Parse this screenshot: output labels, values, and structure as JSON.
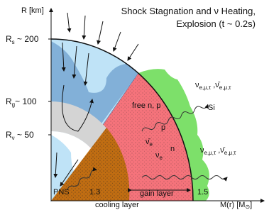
{
  "title": {
    "line1": "Shock Stagnation and ν Heating,",
    "line2": "Explosion  (t ~ 0.2s)"
  },
  "axes": {
    "y_label": "R [km]",
    "x_label": "M(r) [M",
    "x_label_sub": "⊙",
    "x_label_end": "]"
  },
  "radius_labels": [
    {
      "symbol": "R",
      "sub": "s",
      "value": " ~ 200"
    },
    {
      "symbol": "R",
      "sub": "g",
      "value": "~ 100"
    },
    {
      "symbol": "R",
      "sub": "ν",
      "value": " ~ 50"
    }
  ],
  "mass_labels": {
    "pns": "PNS",
    "m1": "1.3",
    "gain": "gain layer",
    "m2": "1.5",
    "cooling": "cooling layer"
  },
  "region_labels": {
    "free": "free n, p",
    "p": "p",
    "n": "n",
    "si": "Si",
    "nu": "ν",
    "nu_sub": "e",
    "nubar": "ν̄",
    "nubar_sub": "e"
  },
  "neutrino_labels": [
    {
      "nu": "ν",
      "sub1": "e,μ,τ",
      "sep": " ,",
      "nubar": "ν̄",
      "sub2": "e,μ,τ"
    },
    {
      "nu": "ν",
      "sub1": "e,μ,τ",
      "sep": " ,",
      "nubar": "ν̄",
      "sub2": "e,μ,τ"
    }
  ]
}
